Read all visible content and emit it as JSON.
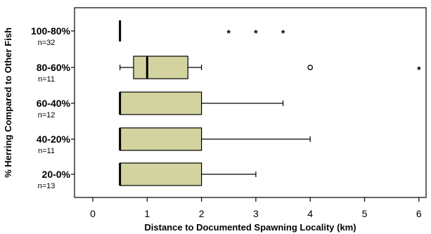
{
  "chart_data": {
    "type": "boxplot",
    "orientation": "horizontal",
    "xlabel": "Distance to Documented Spawning Locality (km)",
    "ylabel": "% Herring Compared to Other Fish",
    "xlim": [
      -0.35,
      6.1
    ],
    "xticks": [
      0,
      1,
      2,
      3,
      4,
      5,
      6
    ],
    "box_color": "#d3d3a0",
    "grid": false,
    "categories": [
      {
        "label": "100-80%",
        "n": "n=32",
        "min": 0.5,
        "q1": 0.5,
        "median": 0.5,
        "q3": 0.5,
        "max": 0.5,
        "outliers": [],
        "extremes": [
          2.5,
          3.0,
          3.5
        ]
      },
      {
        "label": "80-60%",
        "n": "n=11",
        "min": 0.5,
        "q1": 0.75,
        "median": 1.0,
        "q3": 1.75,
        "max": 2.0,
        "outliers": [
          4.0
        ],
        "extremes": [
          6.0
        ]
      },
      {
        "label": "60-40%",
        "n": "n=12",
        "min": 0.5,
        "q1": 0.5,
        "median": 0.5,
        "q3": 2.0,
        "max": 3.5,
        "outliers": [],
        "extremes": []
      },
      {
        "label": "40-20%",
        "n": "n=11",
        "min": 0.5,
        "q1": 0.5,
        "median": 0.5,
        "q3": 2.0,
        "max": 4.0,
        "outliers": [],
        "extremes": []
      },
      {
        "label": "20-0%",
        "n": "n=13",
        "min": 0.5,
        "q1": 0.5,
        "median": 0.5,
        "q3": 2.0,
        "max": 3.0,
        "outliers": [],
        "extremes": []
      }
    ]
  }
}
